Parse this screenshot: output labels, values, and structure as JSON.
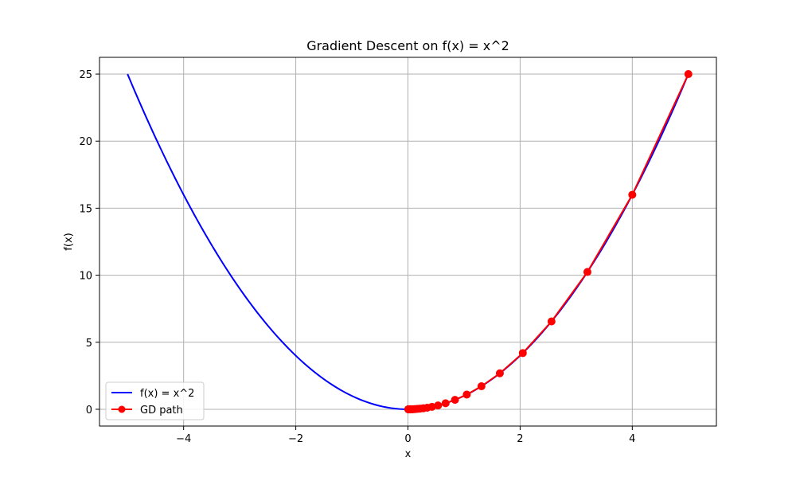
{
  "chart_data": {
    "type": "line",
    "title": "Gradient Descent on f(x) = x^2",
    "xlabel": "x",
    "ylabel": "f(x)",
    "xlim": [
      -5.5,
      5.5
    ],
    "ylim": [
      -1.25,
      26.25
    ],
    "x_ticks": [
      -4,
      -2,
      0,
      2,
      4
    ],
    "x_tick_labels": [
      "−4",
      "−2",
      "0",
      "2",
      "4"
    ],
    "y_ticks": [
      0,
      5,
      10,
      15,
      20,
      25
    ],
    "y_tick_labels": [
      "0",
      "5",
      "10",
      "15",
      "20",
      "25"
    ],
    "grid": true,
    "legend_position": "lower-left",
    "series": [
      {
        "name": "f(x) = x^2",
        "color": "#0000ff",
        "style": "line",
        "function": "x^2",
        "x_range": [
          -5,
          5
        ]
      },
      {
        "name": "GD path",
        "color": "#ff0000",
        "style": "line-with-markers",
        "x": [
          5.0,
          4.0,
          3.2,
          2.56,
          2.048,
          1.6384,
          1.3107,
          1.0486,
          0.8389,
          0.6711,
          0.5369,
          0.4295,
          0.3436,
          0.2749,
          0.2199,
          0.1759,
          0.1407,
          0.1126,
          0.0901,
          0.0721,
          0.0576,
          0.0461,
          0.0369,
          0.0295,
          0.0236,
          0.0189,
          0.0151,
          0.0121,
          0.0097,
          0.0077,
          0.0062
        ],
        "y": [
          25.0,
          16.0,
          10.24,
          6.5536,
          4.1943,
          2.6844,
          1.718,
          1.0995,
          0.7037,
          0.4504,
          0.2882,
          0.1845,
          0.1181,
          0.0756,
          0.0484,
          0.0309,
          0.0198,
          0.0127,
          0.0081,
          0.0052,
          0.0033,
          0.0021,
          0.0014,
          0.0009,
          0.0006,
          0.0004,
          0.0002,
          0.0001,
          0.0001,
          0.0001,
          0.0
        ]
      }
    ]
  }
}
